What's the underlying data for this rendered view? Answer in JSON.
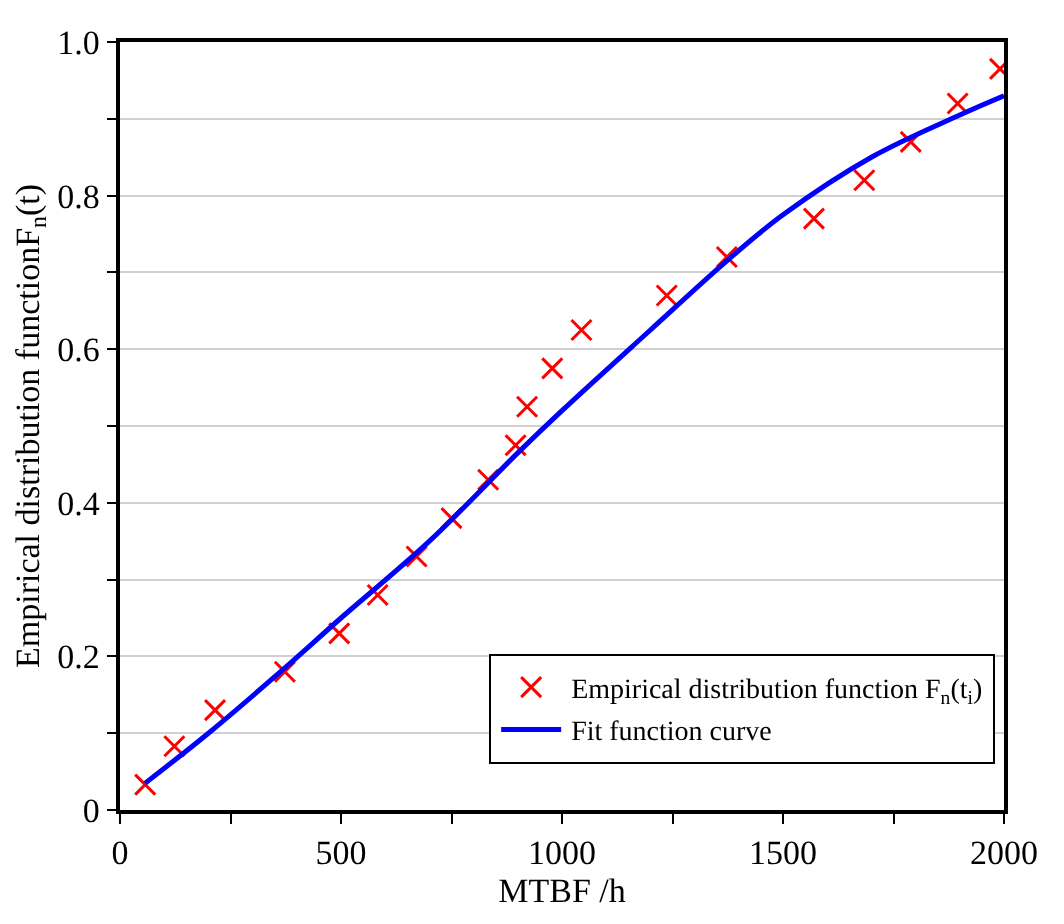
{
  "chart_data": {
    "type": "scatter",
    "xlabel": "MTBF /h",
    "ylabel": "Empirical distribution functionF$_{n}$(t)",
    "xlim": [
      0,
      2000
    ],
    "xticks": [
      0,
      {
        "value": 250,
        "label": null
      },
      500,
      {
        "value": 750,
        "label": null
      },
      1000,
      {
        "value": 1250,
        "label": null
      },
      1500,
      {
        "value": 1750,
        "label": null
      },
      2000
    ],
    "ylim": [
      0,
      1.0
    ],
    "yticks": [
      0,
      {
        "value": 0.1,
        "label": null
      },
      0.2,
      {
        "value": 0.3,
        "label": null
      },
      0.4,
      {
        "value": 0.5,
        "label": null
      },
      0.6,
      {
        "value": 0.7,
        "label": null
      },
      0.8,
      {
        "value": 0.9,
        "label": null
      },
      {
        "value": 1.0,
        "label": "1.0"
      }
    ],
    "grid": "y",
    "legend": "bottom right",
    "series": [
      {
        "name": "Empirical distribution function F$_{n}$(t$_{i}$)",
        "marker": "cross",
        "color": "#ff0000",
        "x": [
          57,
          123,
          215,
          373,
          496,
          583,
          671,
          750,
          833,
          895,
          921,
          978,
          1044,
          1237,
          1373,
          1570,
          1684,
          1789,
          1895,
          1991
        ],
        "values": [
          0.033,
          0.083,
          0.13,
          0.18,
          0.23,
          0.28,
          0.33,
          0.38,
          0.43,
          0.475,
          0.525,
          0.575,
          0.625,
          0.67,
          0.72,
          0.77,
          0.82,
          0.87,
          0.92,
          0.965
        ]
      },
      {
        "name": "Fit function curve",
        "type": "line",
        "line_style": "solid",
        "color": "#0000ff",
        "x": [
          57,
          200,
          373,
          500,
          700,
          900,
          1000,
          1200,
          1373,
          1500,
          1700,
          1900,
          2000
        ],
        "values": [
          0.035,
          0.1,
          0.185,
          0.25,
          0.35,
          0.465,
          0.52,
          0.625,
          0.715,
          0.775,
          0.85,
          0.905,
          0.93
        ]
      }
    ]
  }
}
